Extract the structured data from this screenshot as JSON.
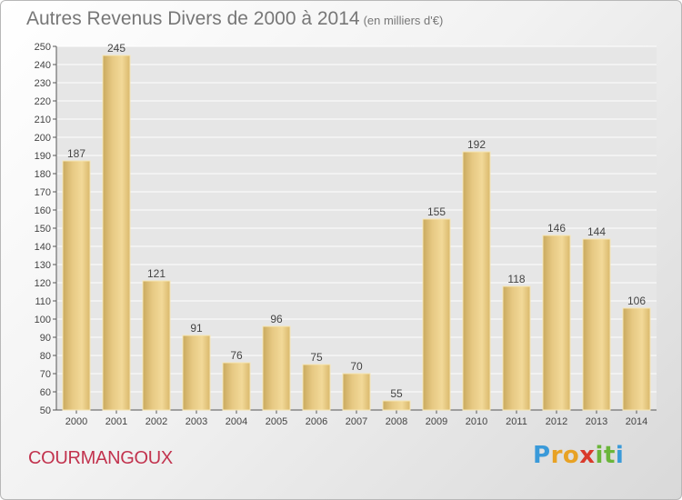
{
  "chart_data": {
    "type": "bar",
    "title": "Autres Revenus Divers de 2000 à 2014",
    "unit_label": "(en milliers d'€)",
    "categories": [
      "2000",
      "2001",
      "2002",
      "2003",
      "2004",
      "2005",
      "2006",
      "2007",
      "2008",
      "2009",
      "2010",
      "2011",
      "2012",
      "2013",
      "2014"
    ],
    "values": [
      187,
      245,
      121,
      91,
      76,
      96,
      75,
      70,
      55,
      155,
      192,
      118,
      146,
      144,
      106
    ],
    "ylim": [
      50,
      250
    ],
    "ytick_step": 10,
    "grid": true,
    "bar_color": "#e8c97e"
  },
  "footer": {
    "commune": "COURMANGOUX",
    "logo_letters": [
      "P",
      "r",
      "o",
      "x",
      "i",
      "t",
      "i"
    ],
    "logo_colors": [
      "#3a9ad9",
      "#e8a224",
      "#e8a224",
      "#d93a2b",
      "#6ab53a",
      "#6ab53a",
      "#3a9ad9"
    ]
  }
}
